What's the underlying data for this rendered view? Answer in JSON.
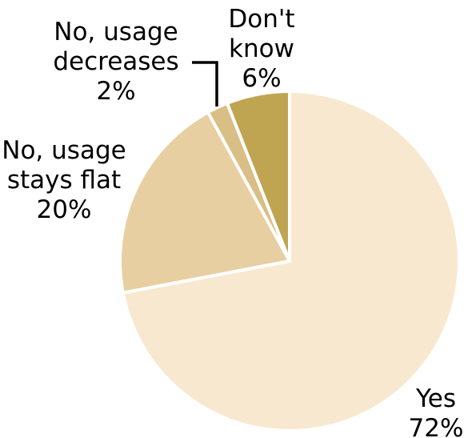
{
  "chart_data": {
    "type": "pie",
    "start_angle_deg": 0,
    "direction": "clockwise",
    "title": "",
    "slices": [
      {
        "label_lines": [
          "Yes",
          "72%"
        ],
        "value": 72,
        "color": "#F8E8CF"
      },
      {
        "label_lines": [
          "No, usage",
          "stays flat",
          "20%"
        ],
        "value": 20,
        "color": "#E8CFA1"
      },
      {
        "label_lines": [
          "No, usage",
          "decreases",
          "2%"
        ],
        "value": 2,
        "color": "#D9BE85"
      },
      {
        "label_lines": [
          "Don't",
          "know",
          "6%"
        ],
        "value": 6,
        "color": "#BFA452"
      }
    ]
  }
}
